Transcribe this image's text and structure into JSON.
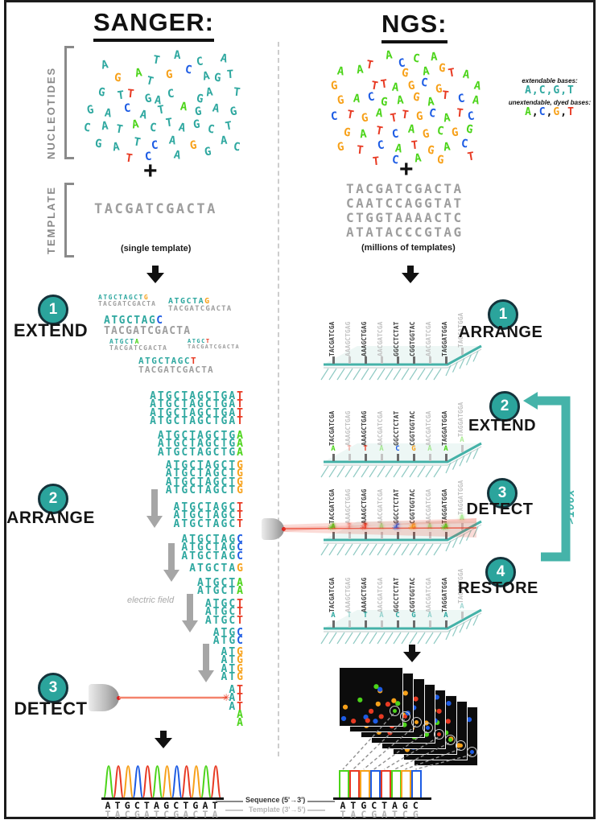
{
  "palette": {
    "teal": "#2FA8A0",
    "green": "#4CD41A",
    "orange": "#F7A11A",
    "red": "#E83A23",
    "blue": "#1D5CE4",
    "gray": "#9E9E9E",
    "dark": "#1C1C1C",
    "laser": "#F4836B",
    "surface": "#45B2A8"
  },
  "sanger": {
    "title": "SANGER:",
    "nucleotides_label": "NUCLEOTIDES",
    "plus": "+",
    "template_label": "TEMPLATE",
    "template_sequence": "TACGATCGACTA",
    "template_caption": "(single template)",
    "steps": [
      {
        "number": "1",
        "label": "EXTEND"
      },
      {
        "number": "2",
        "label": "ARRANGE"
      },
      {
        "number": "3",
        "label": "DETECT"
      }
    ],
    "electric_field_label": "electric field",
    "extend_pairs": [
      {
        "strand": "ATGCTAGCT",
        "terminator": "G",
        "terminator_color": "orange",
        "template": "TACGATCGACTA"
      },
      {
        "strand": "ATGCTA",
        "terminator": "G",
        "terminator_color": "orange",
        "template": "TACGATCGACTA"
      },
      {
        "strand": "ATGCTAG",
        "terminator": "C",
        "terminator_color": "blue",
        "template": "TACGATCGACTA"
      },
      {
        "strand": "ATGCT",
        "terminator": "A",
        "terminator_color": "green",
        "template": "TACGATCGACTA"
      },
      {
        "strand": "ATGC",
        "terminator": "T",
        "terminator_color": "red",
        "template": "TACGATCGACTA"
      },
      {
        "strand": "ATGCTAGC",
        "terminator": "T",
        "terminator_color": "red",
        "template": "TACGATCGACTA"
      }
    ],
    "ladder": [
      {
        "strand": "ATGCTAGCTGA",
        "terminator": "T",
        "terminator_color": "red",
        "count": 4
      },
      {
        "strand": "ATGCTAGCTG",
        "terminator": "A",
        "terminator_color": "green",
        "count": 3
      },
      {
        "strand": "ATGCTAGCT",
        "terminator": "G",
        "terminator_color": "orange",
        "count": 4
      },
      {
        "strand": "ATGCTAGC",
        "terminator": "T",
        "terminator_color": "red",
        "count": 3
      },
      {
        "strand": "ATGCTAG",
        "terminator": "C",
        "terminator_color": "blue",
        "count": 3
      },
      {
        "strand": "ATGCTA",
        "terminator": "G",
        "terminator_color": "orange",
        "count": 1
      },
      {
        "strand": "ATGCT",
        "terminator": "A",
        "terminator_color": "green",
        "count": 2
      },
      {
        "strand": "ATGC",
        "terminator": "T",
        "terminator_color": "red",
        "count": 3
      },
      {
        "strand": "ATG",
        "terminator": "C",
        "terminator_color": "blue",
        "count": 2
      },
      {
        "strand": "AT",
        "terminator": "G",
        "terminator_color": "orange",
        "count": 4
      },
      {
        "strand": "A",
        "terminator": "T",
        "terminator_color": "red",
        "count": 3
      },
      {
        "strand": "",
        "terminator": "A",
        "terminator_color": "green",
        "count": 2
      }
    ],
    "chromatogram": {
      "sequence": "ATGCTAGCTGAT",
      "template": "TACGATCGACTA",
      "base_colors": {
        "A": "green",
        "T": "red",
        "G": "orange",
        "C": "blue"
      }
    },
    "cloud": [
      [
        "A",
        "teal",
        28,
        14,
        -12
      ],
      [
        "T",
        "teal",
        92,
        8,
        10
      ],
      [
        "A",
        "teal",
        118,
        2,
        0
      ],
      [
        "C",
        "teal",
        146,
        10,
        -8
      ],
      [
        "A",
        "teal",
        176,
        6,
        12
      ],
      [
        "G",
        "orange",
        44,
        30,
        6
      ],
      [
        "A",
        "green",
        70,
        24,
        -10
      ],
      [
        "T",
        "teal",
        84,
        34,
        14
      ],
      [
        "G",
        "orange",
        108,
        26,
        -6
      ],
      [
        "C",
        "blue",
        132,
        20,
        8
      ],
      [
        "A",
        "teal",
        154,
        28,
        -12
      ],
      [
        "G",
        "teal",
        168,
        30,
        6
      ],
      [
        "T",
        "teal",
        184,
        26,
        -4
      ],
      [
        "G",
        "teal",
        24,
        48,
        10
      ],
      [
        "T",
        "teal",
        48,
        52,
        -8
      ],
      [
        "T",
        "red",
        60,
        50,
        6
      ],
      [
        "G",
        "teal",
        82,
        56,
        -12
      ],
      [
        "A",
        "teal",
        94,
        58,
        8
      ],
      [
        "C",
        "teal",
        110,
        50,
        -6
      ],
      [
        "G",
        "teal",
        146,
        56,
        10
      ],
      [
        "A",
        "teal",
        158,
        48,
        -8
      ],
      [
        "T",
        "teal",
        192,
        48,
        6
      ],
      [
        "G",
        "teal",
        10,
        70,
        -10
      ],
      [
        "A",
        "teal",
        32,
        74,
        8
      ],
      [
        "C",
        "blue",
        56,
        68,
        -6
      ],
      [
        "A",
        "teal",
        76,
        76,
        12
      ],
      [
        "T",
        "teal",
        98,
        70,
        -10
      ],
      [
        "A",
        "green",
        126,
        66,
        6
      ],
      [
        "G",
        "teal",
        144,
        72,
        -8
      ],
      [
        "A",
        "teal",
        166,
        68,
        10
      ],
      [
        "G",
        "teal",
        188,
        72,
        -12
      ],
      [
        "C",
        "teal",
        6,
        92,
        8
      ],
      [
        "A",
        "teal",
        28,
        90,
        -6
      ],
      [
        "T",
        "teal",
        46,
        94,
        10
      ],
      [
        "A",
        "green",
        66,
        88,
        -10
      ],
      [
        "C",
        "teal",
        88,
        92,
        6
      ],
      [
        "T",
        "teal",
        108,
        86,
        -8
      ],
      [
        "A",
        "teal",
        124,
        92,
        12
      ],
      [
        "G",
        "teal",
        142,
        88,
        -6
      ],
      [
        "C",
        "teal",
        160,
        94,
        8
      ],
      [
        "T",
        "teal",
        182,
        90,
        -10
      ],
      [
        "G",
        "teal",
        20,
        112,
        6
      ],
      [
        "A",
        "teal",
        42,
        116,
        -8
      ],
      [
        "T",
        "teal",
        68,
        110,
        10
      ],
      [
        "C",
        "blue",
        90,
        114,
        -6
      ],
      [
        "A",
        "teal",
        112,
        108,
        8
      ],
      [
        "G",
        "orange",
        138,
        114,
        -10
      ],
      [
        "A",
        "teal",
        176,
        108,
        -4
      ],
      [
        "T",
        "red",
        58,
        130,
        8
      ],
      [
        "C",
        "blue",
        82,
        128,
        -6
      ],
      [
        "A",
        "teal",
        118,
        126,
        10
      ],
      [
        "G",
        "teal",
        156,
        122,
        -8
      ],
      [
        "C",
        "teal",
        192,
        116,
        6
      ]
    ]
  },
  "ngs": {
    "title": "NGS:",
    "plus": "+",
    "legend": {
      "extendable_label": "extendable bases:",
      "extendable_bases": "A,C,G,T",
      "unextendable_label": "unextendable, dyed bases:",
      "unextendable_bases": [
        {
          "base": "A",
          "color": "green"
        },
        {
          "base": "C",
          "color": "blue"
        },
        {
          "base": "G",
          "color": "orange"
        },
        {
          "base": "T",
          "color": "red"
        }
      ]
    },
    "templates": [
      "TACGATCGACTA",
      "CAATCCAGGTAT",
      "CTGGTAAAACTC",
      "ATATACCCGTAG"
    ],
    "templates_ellipsis": "⋮",
    "templates_caption": "(millions of templates)",
    "steps": [
      {
        "number": "1",
        "label": "ARRANGE"
      },
      {
        "number": "2",
        "label": "EXTEND"
      },
      {
        "number": "3",
        "label": "DETECT"
      },
      {
        "number": "4",
        "label": "RESTORE"
      }
    ],
    "cycle_label": ">100x",
    "flow_cell_strands": [
      {
        "sequence": "TACGATCGA",
        "shade": "dark",
        "added_base": "A",
        "added_color": "green"
      },
      {
        "sequence": "AAAGCTGAG",
        "shade": "light",
        "added_base": "T",
        "added_color": "red"
      },
      {
        "sequence": "AAAGCTGAG",
        "shade": "dark",
        "added_base": "T",
        "added_color": "red"
      },
      {
        "sequence": "AACGATCGA",
        "shade": "light",
        "added_base": "A",
        "added_color": "green"
      },
      {
        "sequence": "GGCCTCTAT",
        "shade": "dark",
        "added_base": "C",
        "added_color": "blue"
      },
      {
        "sequence": "CGGTGGTAC",
        "shade": "dark",
        "added_base": "G",
        "added_color": "orange"
      },
      {
        "sequence": "AACGATCGA",
        "shade": "light",
        "added_base": "A",
        "added_color": "green"
      },
      {
        "sequence": "TAGGATGGA",
        "shade": "dark",
        "added_base": "A",
        "added_color": "green"
      },
      {
        "sequence": "TAGGATGGA",
        "shade": "light",
        "added_base": "A",
        "added_color": "green"
      }
    ],
    "flow_cells": [
      {
        "mode": "plain"
      },
      {
        "mode": "extend"
      },
      {
        "mode": "detect"
      },
      {
        "mode": "restore"
      }
    ],
    "image_stack": {
      "frame_count": 8,
      "dot_colors": [
        "red",
        "green",
        "blue",
        "orange"
      ],
      "detected": [
        {
          "base": "A",
          "color": "green"
        },
        {
          "base": "T",
          "color": "red"
        },
        {
          "base": "G",
          "color": "orange"
        },
        {
          "base": "C",
          "color": "blue"
        },
        {
          "base": "T",
          "color": "red"
        },
        {
          "base": "A",
          "color": "green"
        },
        {
          "base": "G",
          "color": "orange"
        },
        {
          "base": "C",
          "color": "blue"
        }
      ]
    },
    "read_sequence": "ATGCTAGC",
    "read_template": "TACGATCG",
    "cloud": [
      [
        "A",
        "green",
        74,
        4,
        -8
      ],
      [
        "C",
        "green",
        108,
        8,
        8
      ],
      [
        "A",
        "green",
        130,
        6,
        -4
      ],
      [
        "T",
        "red",
        50,
        16,
        10
      ],
      [
        "C",
        "blue",
        90,
        14,
        -10
      ],
      [
        "A",
        "green",
        14,
        24,
        8
      ],
      [
        "A",
        "green",
        38,
        22,
        -6
      ],
      [
        "G",
        "orange",
        94,
        26,
        10
      ],
      [
        "A",
        "green",
        120,
        24,
        -8
      ],
      [
        "G",
        "orange",
        140,
        20,
        6
      ],
      [
        "T",
        "red",
        152,
        26,
        -10
      ],
      [
        "A",
        "green",
        170,
        28,
        8
      ],
      [
        "G",
        "orange",
        6,
        42,
        -6
      ],
      [
        "T",
        "red",
        56,
        42,
        10
      ],
      [
        "T",
        "red",
        68,
        40,
        -8
      ],
      [
        "A",
        "green",
        82,
        44,
        6
      ],
      [
        "G",
        "orange",
        102,
        42,
        -10
      ],
      [
        "C",
        "blue",
        118,
        38,
        8
      ],
      [
        "G",
        "orange",
        136,
        46,
        -6
      ],
      [
        "A",
        "green",
        184,
        42,
        10
      ],
      [
        "G",
        "orange",
        14,
        60,
        -8
      ],
      [
        "A",
        "green",
        34,
        58,
        6
      ],
      [
        "C",
        "blue",
        52,
        56,
        -10
      ],
      [
        "G",
        "green",
        68,
        62,
        8
      ],
      [
        "A",
        "green",
        88,
        60,
        -6
      ],
      [
        "G",
        "orange",
        108,
        56,
        10
      ],
      [
        "A",
        "green",
        126,
        62,
        -8
      ],
      [
        "T",
        "red",
        144,
        54,
        6
      ],
      [
        "C",
        "blue",
        164,
        58,
        -10
      ],
      [
        "A",
        "green",
        182,
        60,
        8
      ],
      [
        "C",
        "blue",
        6,
        80,
        -6
      ],
      [
        "T",
        "red",
        26,
        78,
        10
      ],
      [
        "G",
        "orange",
        44,
        82,
        -8
      ],
      [
        "A",
        "green",
        62,
        76,
        6
      ],
      [
        "T",
        "red",
        80,
        82,
        -10
      ],
      [
        "T",
        "red",
        94,
        78,
        8
      ],
      [
        "G",
        "orange",
        112,
        80,
        -6
      ],
      [
        "C",
        "blue",
        128,
        76,
        10
      ],
      [
        "A",
        "green",
        146,
        82,
        -8
      ],
      [
        "T",
        "red",
        162,
        76,
        6
      ],
      [
        "C",
        "blue",
        176,
        80,
        -10
      ],
      [
        "G",
        "orange",
        22,
        100,
        8
      ],
      [
        "A",
        "green",
        42,
        102,
        -6
      ],
      [
        "T",
        "red",
        62,
        98,
        10
      ],
      [
        "C",
        "blue",
        82,
        102,
        -8
      ],
      [
        "A",
        "green",
        102,
        96,
        6
      ],
      [
        "G",
        "orange",
        120,
        102,
        -10
      ],
      [
        "C",
        "green",
        138,
        98,
        8
      ],
      [
        "G",
        "orange",
        156,
        100,
        -6
      ],
      [
        "G",
        "green",
        174,
        96,
        10
      ],
      [
        "G",
        "orange",
        14,
        118,
        -8
      ],
      [
        "T",
        "red",
        38,
        122,
        6
      ],
      [
        "C",
        "blue",
        64,
        116,
        -10
      ],
      [
        "A",
        "green",
        86,
        120,
        8
      ],
      [
        "T",
        "red",
        106,
        116,
        -6
      ],
      [
        "G",
        "orange",
        126,
        122,
        10
      ],
      [
        "A",
        "green",
        146,
        118,
        -8
      ],
      [
        "C",
        "blue",
        168,
        114,
        6
      ],
      [
        "T",
        "red",
        58,
        136,
        -6
      ],
      [
        "C",
        "blue",
        82,
        134,
        8
      ],
      [
        "A",
        "green",
        110,
        132,
        -8
      ],
      [
        "G",
        "orange",
        138,
        134,
        6
      ],
      [
        "T",
        "red",
        176,
        130,
        -10
      ]
    ]
  },
  "footer": {
    "sequence_label": "Sequence (5'→3')",
    "template_label": "Template (3'→5')"
  }
}
